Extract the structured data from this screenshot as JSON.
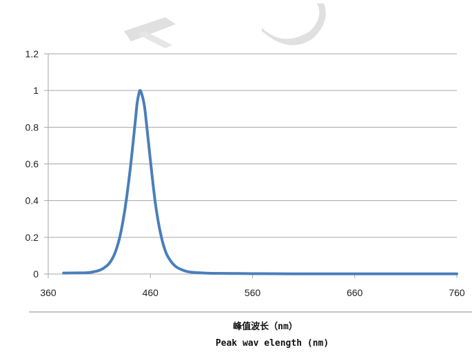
{
  "chart_data": {
    "type": "line",
    "title": "",
    "xlabel_cn": "峰值波长（nm）",
    "xlabel": "Peak wav elength (nm)",
    "ylabel": "",
    "xlim": [
      360,
      760
    ],
    "ylim": [
      0,
      1.2
    ],
    "xticks": [
      "360",
      "460",
      "560",
      "660",
      "760"
    ],
    "yticks": [
      "0",
      "0.2",
      "0.4",
      "0.6",
      "0.8",
      "1",
      "1.2"
    ],
    "grid": "horizontal",
    "legend": "none",
    "series_color": "#4a7ebb",
    "series": [
      {
        "x": [
          375,
          390,
          400,
          410,
          415,
          420,
          425,
          430,
          435,
          440,
          445,
          447,
          449,
          450,
          451,
          453,
          455,
          460,
          465,
          470,
          475,
          480,
          485,
          490,
          495,
          500,
          510,
          520,
          540,
          560,
          600,
          660,
          700,
          760
        ],
        "y": [
          0.005,
          0.006,
          0.008,
          0.02,
          0.035,
          0.06,
          0.11,
          0.2,
          0.35,
          0.56,
          0.82,
          0.93,
          0.99,
          1.0,
          0.99,
          0.95,
          0.88,
          0.62,
          0.38,
          0.22,
          0.12,
          0.07,
          0.04,
          0.025,
          0.015,
          0.01,
          0.006,
          0.004,
          0.003,
          0.002,
          0.001,
          0.001,
          0.001,
          0.001
        ]
      }
    ]
  }
}
